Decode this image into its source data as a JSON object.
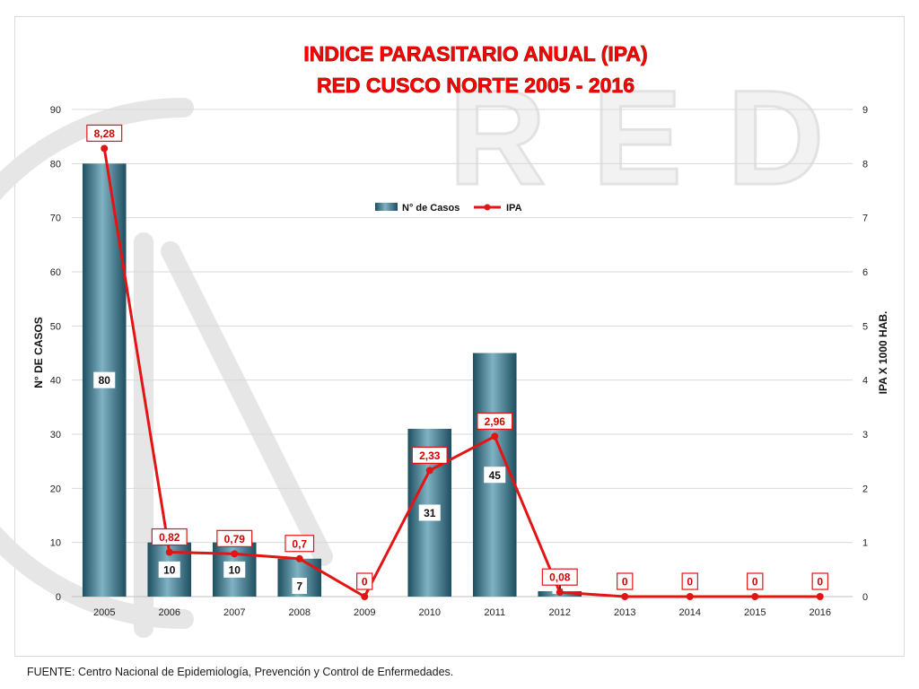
{
  "chart_data": {
    "type": "bar",
    "title": [
      "INDICE PARASITARIO ANUAL (IPA)",
      "RED CUSCO NORTE 2005 - 2016"
    ],
    "categories": [
      "2005",
      "2006",
      "2007",
      "2008",
      "2009",
      "2010",
      "2011",
      "2012",
      "2013",
      "2014",
      "2015",
      "2016"
    ],
    "series": [
      {
        "name": "N° de Casos",
        "type": "bar",
        "axis": "left",
        "color": "#2f6e83",
        "values": [
          80,
          10,
          10,
          7,
          0,
          31,
          45,
          1,
          0,
          0,
          0,
          0
        ],
        "data_labels": [
          "80",
          "10",
          "10",
          "7",
          null,
          "31",
          "45",
          "1",
          null,
          null,
          null,
          null
        ]
      },
      {
        "name": "IPA",
        "type": "line",
        "axis": "right",
        "color": "#e31414",
        "values": [
          8.28,
          0.82,
          0.79,
          0.7,
          0,
          2.33,
          2.96,
          0.08,
          0,
          0,
          0,
          0
        ],
        "data_labels": [
          "8,28",
          "0,82",
          "0,79",
          "0,7",
          "0",
          "2,33",
          "2,96",
          "0,08",
          "0",
          "0",
          "0",
          "0"
        ]
      }
    ],
    "ylabel": "N° DE CASOS",
    "y2label": "IPA X 1000 HAB.",
    "ylim": [
      0,
      90
    ],
    "y2lim": [
      0,
      9
    ],
    "yticks": [
      "0",
      "10",
      "20",
      "30",
      "40",
      "50",
      "60",
      "70",
      "80",
      "90"
    ],
    "y2ticks": [
      "0",
      "1",
      "2",
      "3",
      "4",
      "5",
      "6",
      "7",
      "8",
      "9"
    ],
    "grid": true,
    "legend_position": "top-center"
  },
  "footer": {
    "source_prefix": "FUENTE: Centro",
    "source_rest": " Nacional de Epidemiología, Prevención y Control de Enfermedades."
  },
  "background": {
    "watermark_letters": [
      "R",
      "E",
      "D"
    ]
  }
}
